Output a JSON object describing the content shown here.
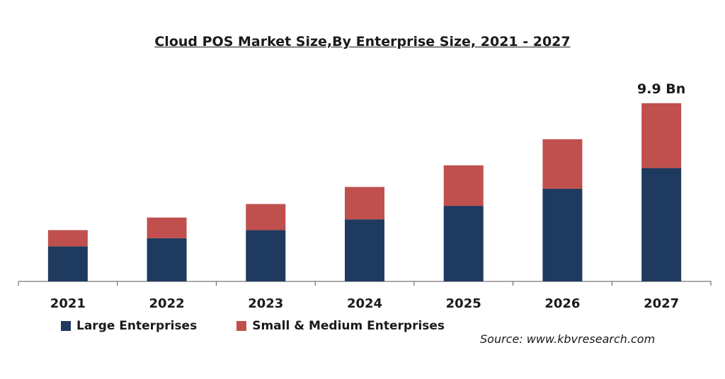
{
  "chart_data": {
    "type": "bar",
    "stacked": true,
    "title": "Cloud POS Market Size,By Enterprise  Size, 2021 - 2027",
    "xlabel": "",
    "ylabel": "",
    "categories": [
      "2021",
      "2022",
      "2023",
      "2024",
      "2025",
      "2026",
      "2027"
    ],
    "series": [
      {
        "name": "Large Enterprises",
        "color": "#1f3a5f",
        "values": [
          1.95,
          2.4,
          2.85,
          3.45,
          4.2,
          5.15,
          6.3
        ]
      },
      {
        "name": "Small & Medium Enterprises",
        "color": "#c0504d",
        "values": [
          0.9,
          1.15,
          1.45,
          1.8,
          2.25,
          2.75,
          3.6
        ]
      }
    ],
    "ylim": [
      0,
      9.9
    ],
    "annotations": [
      {
        "category": "2027",
        "text": "9.9 Bn"
      }
    ],
    "grid": false,
    "legend_position": "bottom-left"
  },
  "source": "Source: www.kbvresearch.com"
}
